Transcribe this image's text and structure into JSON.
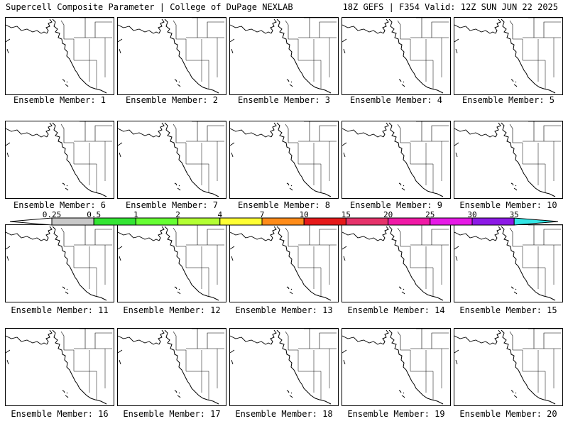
{
  "header": {
    "left": "Supercell Composite Parameter | College of DuPage NEXLAB",
    "right": "18Z GEFS | F354 Valid: 12Z SUN JUN 22 2025"
  },
  "members": [
    "Ensemble Member: 1",
    "Ensemble Member: 2",
    "Ensemble Member: 3",
    "Ensemble Member: 4",
    "Ensemble Member: 5",
    "Ensemble Member: 6",
    "Ensemble Member: 7",
    "Ensemble Member: 8",
    "Ensemble Member: 9",
    "Ensemble Member: 10",
    "Ensemble Member: 11",
    "Ensemble Member: 12",
    "Ensemble Member: 13",
    "Ensemble Member: 14",
    "Ensemble Member: 15",
    "Ensemble Member: 16",
    "Ensemble Member: 17",
    "Ensemble Member: 18",
    "Ensemble Member: 19",
    "Ensemble Member: 20"
  ],
  "colorbar": {
    "labels": [
      "0.25",
      "0.5",
      "1",
      "2",
      "4",
      "7",
      "10",
      "15",
      "20",
      "25",
      "30",
      "35"
    ],
    "colors": [
      "#c8c8c8",
      "#33e533",
      "#66ff33",
      "#b3ff33",
      "#ffff33",
      "#ff8c1a",
      "#e61a1a",
      "#e6336b",
      "#f01aa6",
      "#e61ae6",
      "#8c1ae6",
      "#a65ad9",
      "#33e6e6"
    ]
  }
}
